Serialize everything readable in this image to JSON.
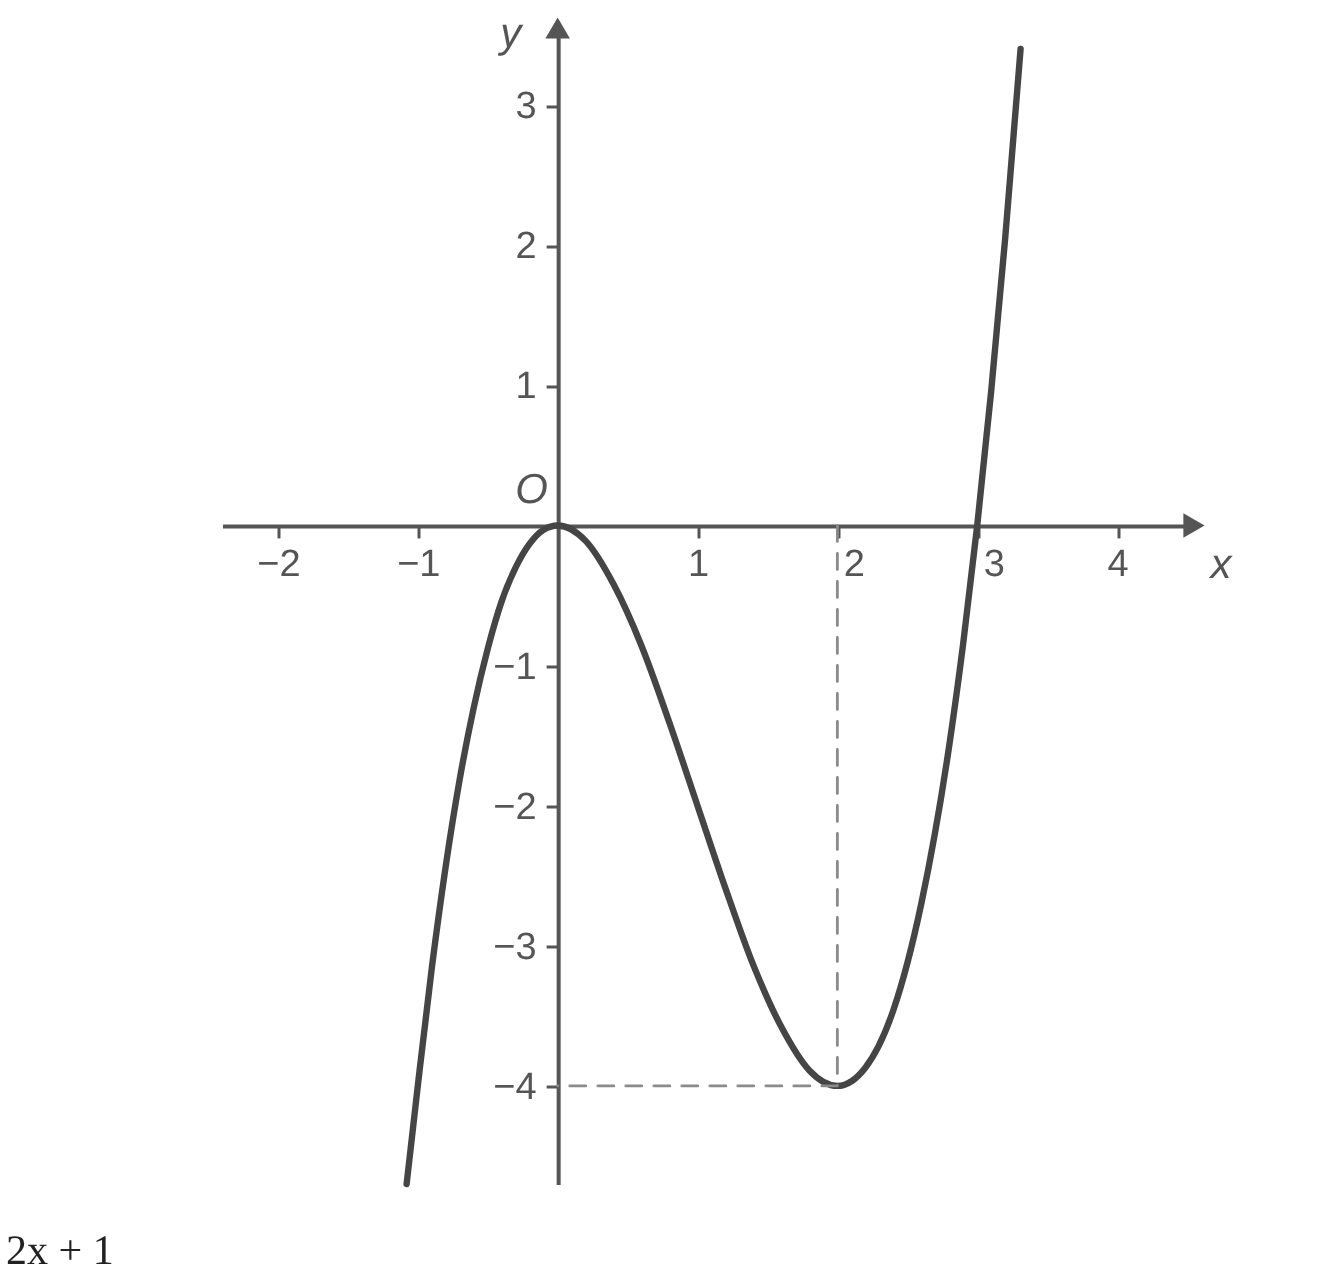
{
  "chart_data": {
    "type": "line",
    "xlabel": "x",
    "ylabel": "y",
    "xlim": [
      -2.4,
      4.55
    ],
    "ylim": [
      -4.7,
      3.55
    ],
    "xticks": [
      -2,
      -1,
      1,
      2,
      3,
      4
    ],
    "yticks": [
      -4,
      -3,
      -2,
      -1,
      1,
      2,
      3
    ],
    "grid": false,
    "marker": "none",
    "annotations": [
      {
        "text": "O",
        "x": 0,
        "y": 0
      },
      "2x + 1"
    ],
    "series": [
      {
        "color": "#454545",
        "line_style": "solid",
        "x": [
          -1.08,
          -1,
          -0.9,
          -0.8,
          -0.7,
          -0.6,
          -0.5,
          -0.4,
          -0.3,
          -0.2,
          -0.1,
          0,
          0.2,
          0.4,
          0.6,
          0.8,
          1,
          1.2,
          1.4,
          1.6,
          1.8,
          2,
          2.2,
          2.4,
          2.6,
          2.8,
          2.9,
          3,
          3.1,
          3.2,
          3.31
        ],
        "values": [
          -4.7,
          -4,
          -3.16,
          -2.43,
          -1.81,
          -1.3,
          -0.88,
          -0.54,
          -0.3,
          -0.13,
          -0.03,
          0,
          -0.11,
          -0.42,
          -0.86,
          -1.41,
          -2,
          -2.59,
          -3.14,
          -3.58,
          -3.89,
          -4,
          -3.87,
          -3.46,
          -2.7,
          -1.57,
          -0.84,
          0,
          0.96,
          2.05,
          3.4
        ]
      },
      {
        "type": "line",
        "line_style": "dashed",
        "color": "#8a8a8a",
        "x": [
          2,
          2,
          0
        ],
        "values": [
          0,
          -4,
          -4
        ]
      }
    ]
  }
}
